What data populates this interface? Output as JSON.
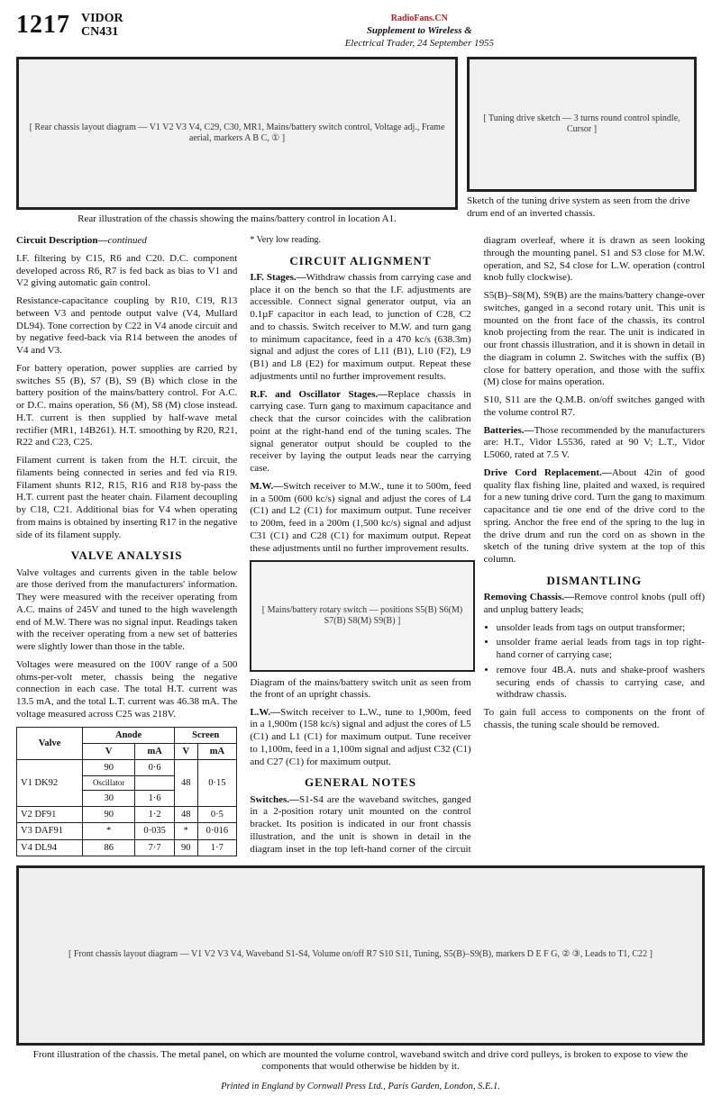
{
  "header": {
    "issue_number": "1217",
    "brand": "VIDOR",
    "model": "CN431",
    "pub_line1": "Supplement to Wireless &",
    "pub_line2": "Electrical Trader, 24 September 1955",
    "watermark": "RadioFans.CN"
  },
  "rear_diagram": {
    "placeholder": "[ Rear chassis layout diagram — V1 V2 V3 V4, C29, C30, MR1, Mains/battery switch control, Voltage adj., Frame aerial, markers A B C, ① ]",
    "caption": "Rear illustration of the chassis showing the mains/battery control in location A1."
  },
  "tuning_sketch": {
    "placeholder": "[ Tuning drive sketch — 3 turns round control spindle, Cursor ]",
    "caption": "Sketch of the tuning drive system as seen from the drive drum end of an inverted chassis."
  },
  "circuit_desc": {
    "heading": "Circuit Description—",
    "continued": "continued",
    "p1": "I.F. filtering by C15, R6 and C20. D.C. component developed across R6, R7 is fed back as bias to V1 and V2 giving automatic gain control.",
    "p2": "Resistance-capacitance coupling by R10, C19, R13 between V3 and pentode output valve (V4, Mullard DL94). Tone correction by C22 in V4 anode circuit and by negative feed-back via R14 between the anodes of V4 and V3.",
    "p3": "For battery operation, power supplies are carried by switches S5 (B), S7 (B), S9 (B) which close in the battery position of the mains/battery control. For A.C. or D.C. mains operation, S6 (M), S8 (M) close instead. H.T. current is then supplied by half-wave metal rectifier (MR1, 14B261). H.T. smoothing by R20, R21, R22 and C23, C25.",
    "p4": "Filament current is taken from the H.T. circuit, the filaments being connected in series and fed via R19. Filament shunts R12, R15, R16 and R18 by-pass the H.T. current past the heater chain. Filament decoupling by C18, C21. Additional bias for V4 when operating from mains is obtained by inserting R17 in the negative side of its filament supply."
  },
  "valve_analysis": {
    "heading": "VALVE ANALYSIS",
    "p1": "Valve voltages and currents given in the table below are those derived from the manufacturers' information. They were measured with the receiver operating from A.C. mains of 245V and tuned to the high wavelength end of M.W. There was no signal input. Readings taken with the receiver operating from a new set of batteries were slightly lower than those in the table.",
    "p2": "Voltages were measured on the 100V range of a 500 ohms-per-volt meter, chassis being the negative connection in each case. The total H.T. current was 13.5 mA, and the total L.T. current was 46.38 mA. The voltage measured across C25 was 218V.",
    "table": {
      "head1": "Valve",
      "head2": "Anode",
      "head3": "Screen",
      "sub_v": "V",
      "sub_ma": "mA",
      "rows": [
        {
          "valve": "V1 DK92",
          "av_a": "90",
          "av_b": "Oscillator",
          "av_c": "30",
          "ama_a": "0·6",
          "ama_b": "",
          "ama_c": "1·6",
          "sv": "48",
          "sma": "0·15"
        },
        {
          "valve": "V2 DF91",
          "av": "90",
          "ama": "1·2",
          "sv": "48",
          "sma": "0·5"
        },
        {
          "valve": "V3 DAF91",
          "av": "*",
          "ama": "0·035",
          "sv": "*",
          "sma": "0·016"
        },
        {
          "valve": "V4 DL94",
          "av": "86",
          "ama": "7·7",
          "sv": "90",
          "sma": "1·7"
        }
      ],
      "footnote": "* Very low reading."
    }
  },
  "circuit_alignment": {
    "heading": "CIRCUIT ALIGNMENT",
    "if_heading": "I.F. Stages.—",
    "if_text": "Withdraw chassis from carrying case and place it on the bench so that the I.F. adjustments are accessible. Connect signal generator output, via an 0.1µF capacitor in each lead, to junction of C28, C2 and to chassis. Switch receiver to M.W. and turn gang to minimum capacitance, feed in a 470 kc/s (638.3m) signal and adjust the cores of L11 (B1), L10 (F2), L9 (B1) and L8 (E2) for maximum output. Repeat these adjustments until no further improvement results.",
    "rf_heading": "R.F. and Oscillator Stages.—",
    "rf_text": "Replace chassis in carrying case. Turn gang to maximum capacitance and check that the cursor coincides with the calibration point at the right-hand end of the tuning scales. The signal generator output should be coupled to the receiver by laying the output leads near the carrying case.",
    "mw_heading": "M.W.—",
    "mw_text": "Switch receiver to M.W., tune it to 500m, feed in a 500m (600 kc/s) signal and adjust the cores of L4 (C1) and L2 (C1) for maximum output. Tune receiver to 200m, feed in a 200m (1,500 kc/s) signal and adjust C31 (C1) and C28 (C1) for maximum output. Repeat these adjustments until no further improvement results.",
    "lw_heading": "L.W.—",
    "lw_text": "Switch receiver to L.W., tune to 1,900m, feed in a 1,900m (158 kc/s) signal and adjust the cores of L5 (C1) and L1 (C1) for maximum output. Tune receiver to 1,100m, feed in a 1,100m signal and adjust C32 (C1) and C27 (C1) for maximum output."
  },
  "switch_diagram": {
    "placeholder": "[ Mains/battery rotary switch — positions S5(B) S6(M) S7(B) S8(M) S9(B) ]",
    "caption": "Diagram of the mains/battery switch unit as seen from the front of an upright chassis."
  },
  "general_notes": {
    "heading": "GENERAL NOTES",
    "switches_h": "Switches.—",
    "switches": "S1-S4 are the waveband switches, ganged in a 2-position rotary unit mounted on the control bracket. Its position is indicated in our front chassis illustration, and the unit is shown in detail in the diagram inset in the top left-hand corner of the circuit diagram overleaf, where it is drawn as seen looking through the mounting panel. S1 and S3 close for M.W. operation, and S2, S4 close for L.W. operation (control knob fully clockwise).",
    "s5_text": "S5(B)–S8(M), S9(B) are the mains/battery change-over switches, ganged in a second rotary unit. This unit is mounted on the front face of the chassis, its control knob projecting from the rear. The unit is indicated in our front chassis illustration, and it is shown in detail in the diagram in column 2. Switches with the suffix (B) close for battery operation, and those with the suffix (M) close for mains operation.",
    "s10_text": "S10, S11 are the Q.M.B. on/off switches ganged with the volume control R7.",
    "batt_h": "Batteries.—",
    "batt": "Those recommended by the manufacturers are: H.T., Vidor L5536, rated at 90 V; L.T., Vidor L5060, rated at 7.5 V.",
    "cord_h": "Drive Cord Replacement.—",
    "cord": "About 42in of good quality flax fishing line, plaited and waxed, is required for a new tuning drive cord. Turn the gang to maximum capacitance and tie one end of the drive cord to the spring. Anchor the free end of the spring to the lug in the drive drum and run the cord on as shown in the sketch of the tuning drive system at the top of this column."
  },
  "dismantling": {
    "heading": "DISMANTLING",
    "rc_h": "Removing Chassis.—",
    "rc": "Remove control knobs (pull off) and unplug battery leads;",
    "li1": "unsolder leads from tags on output transformer;",
    "li2": "unsolder frame aerial leads from tags in top right-hand corner of carrying case;",
    "li3": "remove four 4B.A. nuts and shake-proof washers securing ends of chassis to carrying case, and withdraw chassis.",
    "p2": "To gain full access to components on the front of chassis, the tuning scale should be removed."
  },
  "front_diagram": {
    "placeholder": "[ Front chassis layout diagram — V1 V2 V3 V4, Waveband S1-S4, Volume on/off R7 S10 S11, Tuning, S5(B)–S9(B), markers D E F G, ② ③, Leads to T1, C22 ]",
    "caption": "Front illustration of the chassis. The metal panel, on which are mounted the volume control, waveband switch and drive cord pulleys, is broken to expose to view the components that would otherwise be hidden by it."
  },
  "printer": "Printed in England by Cornwall Press Ltd., Paris Garden, London, S.E.1."
}
